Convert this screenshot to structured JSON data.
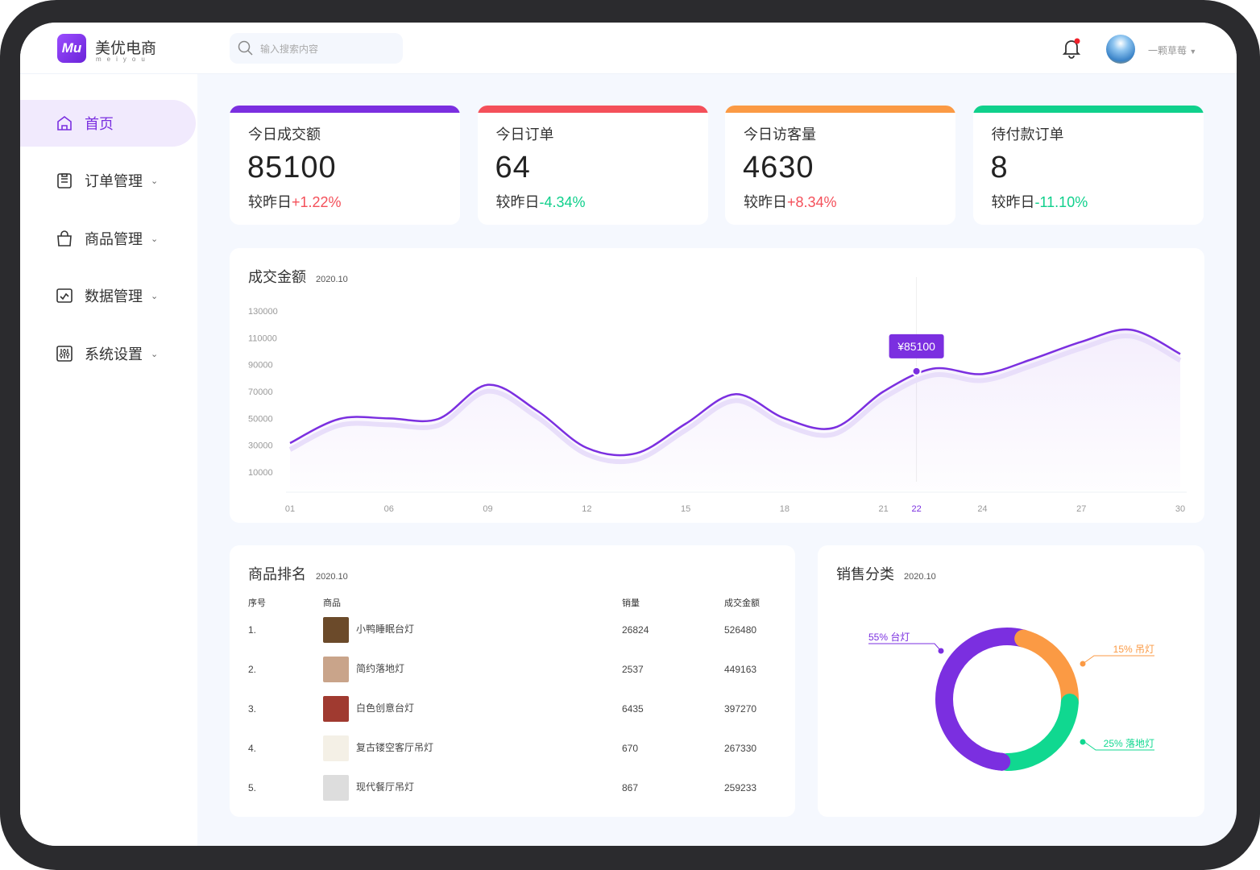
{
  "app": {
    "logo_text": "Mu",
    "name": "美优电商",
    "subtitle": "meiyou"
  },
  "search": {
    "placeholder": "输入搜索内容"
  },
  "user": {
    "name": "一颗草莓",
    "has_notification": true
  },
  "sidebar": {
    "items": [
      {
        "label": "首页",
        "icon": "home-icon",
        "active": true
      },
      {
        "label": "订单管理",
        "icon": "clipboard-icon",
        "expandable": true
      },
      {
        "label": "商品管理",
        "icon": "bag-icon",
        "expandable": true
      },
      {
        "label": "数据管理",
        "icon": "chart-icon",
        "expandable": true
      },
      {
        "label": "系统设置",
        "icon": "sliders-icon",
        "expandable": true
      }
    ]
  },
  "stats": [
    {
      "title": "今日成交额",
      "value": "85100",
      "compare_label": "较昨日",
      "change": "+1.22%",
      "trend": "up",
      "color": "#7b2fe0"
    },
    {
      "title": "今日订单",
      "value": "64",
      "compare_label": "较昨日",
      "change": "-4.34%",
      "trend": "down",
      "color": "#f4505a"
    },
    {
      "title": "今日访客量",
      "value": "4630",
      "compare_label": "较昨日",
      "change": "+8.34%",
      "trend": "up",
      "color": "#fb9a44"
    },
    {
      "title": "待付款订单",
      "value": "8",
      "compare_label": "较昨日",
      "change": "-11.10%",
      "trend": "down",
      "color": "#10d08c"
    }
  ],
  "chart_data": [
    {
      "type": "line",
      "title": "成交金额",
      "subtitle": "2020.10",
      "yticks": [
        "130000",
        "110000",
        "90000",
        "70000",
        "50000",
        "30000",
        "10000"
      ],
      "ylim": [
        10000,
        130000
      ],
      "xticks": [
        "01",
        "06",
        "09",
        "12",
        "15",
        "18",
        "21",
        "24",
        "27",
        "30"
      ],
      "values_half_step": [
        31600,
        49600,
        50000,
        49600,
        75000,
        55600,
        28000,
        24000,
        46000,
        68000,
        50000,
        43000,
        70000,
        87000,
        83000,
        94000,
        107000,
        116000,
        98000
      ],
      "highlight": {
        "label": "22",
        "value": 85100,
        "tooltip": "¥85100"
      },
      "color": "#7b2fe0"
    },
    {
      "type": "pie",
      "title": "销售分类",
      "subtitle": "2020.10",
      "slices": [
        {
          "label": "台灯",
          "percent": 55,
          "text": "55% 台灯",
          "color": "#7b2fe0"
        },
        {
          "label": "吊灯",
          "percent": 15,
          "text": "15% 吊灯",
          "color": "#fb9a44"
        },
        {
          "label": "落地灯",
          "percent": 25,
          "text": "25% 落地灯",
          "color": "#10d890"
        }
      ]
    }
  ],
  "ranking": {
    "title": "商品排名",
    "subtitle": "2020.10",
    "headers": [
      "序号",
      "商品",
      "销量",
      "成交金额"
    ],
    "rows": [
      [
        "1.",
        "小鸭睡眠台灯",
        "26824",
        "526480"
      ],
      [
        "2.",
        "简约落地灯",
        "2537",
        "449163"
      ],
      [
        "3.",
        "白色创意台灯",
        "6435",
        "397270"
      ],
      [
        "4.",
        "复古镂空客厅吊灯",
        "670",
        "267330"
      ],
      [
        "5.",
        "现代餐厅吊灯",
        "867",
        "259233"
      ]
    ]
  }
}
